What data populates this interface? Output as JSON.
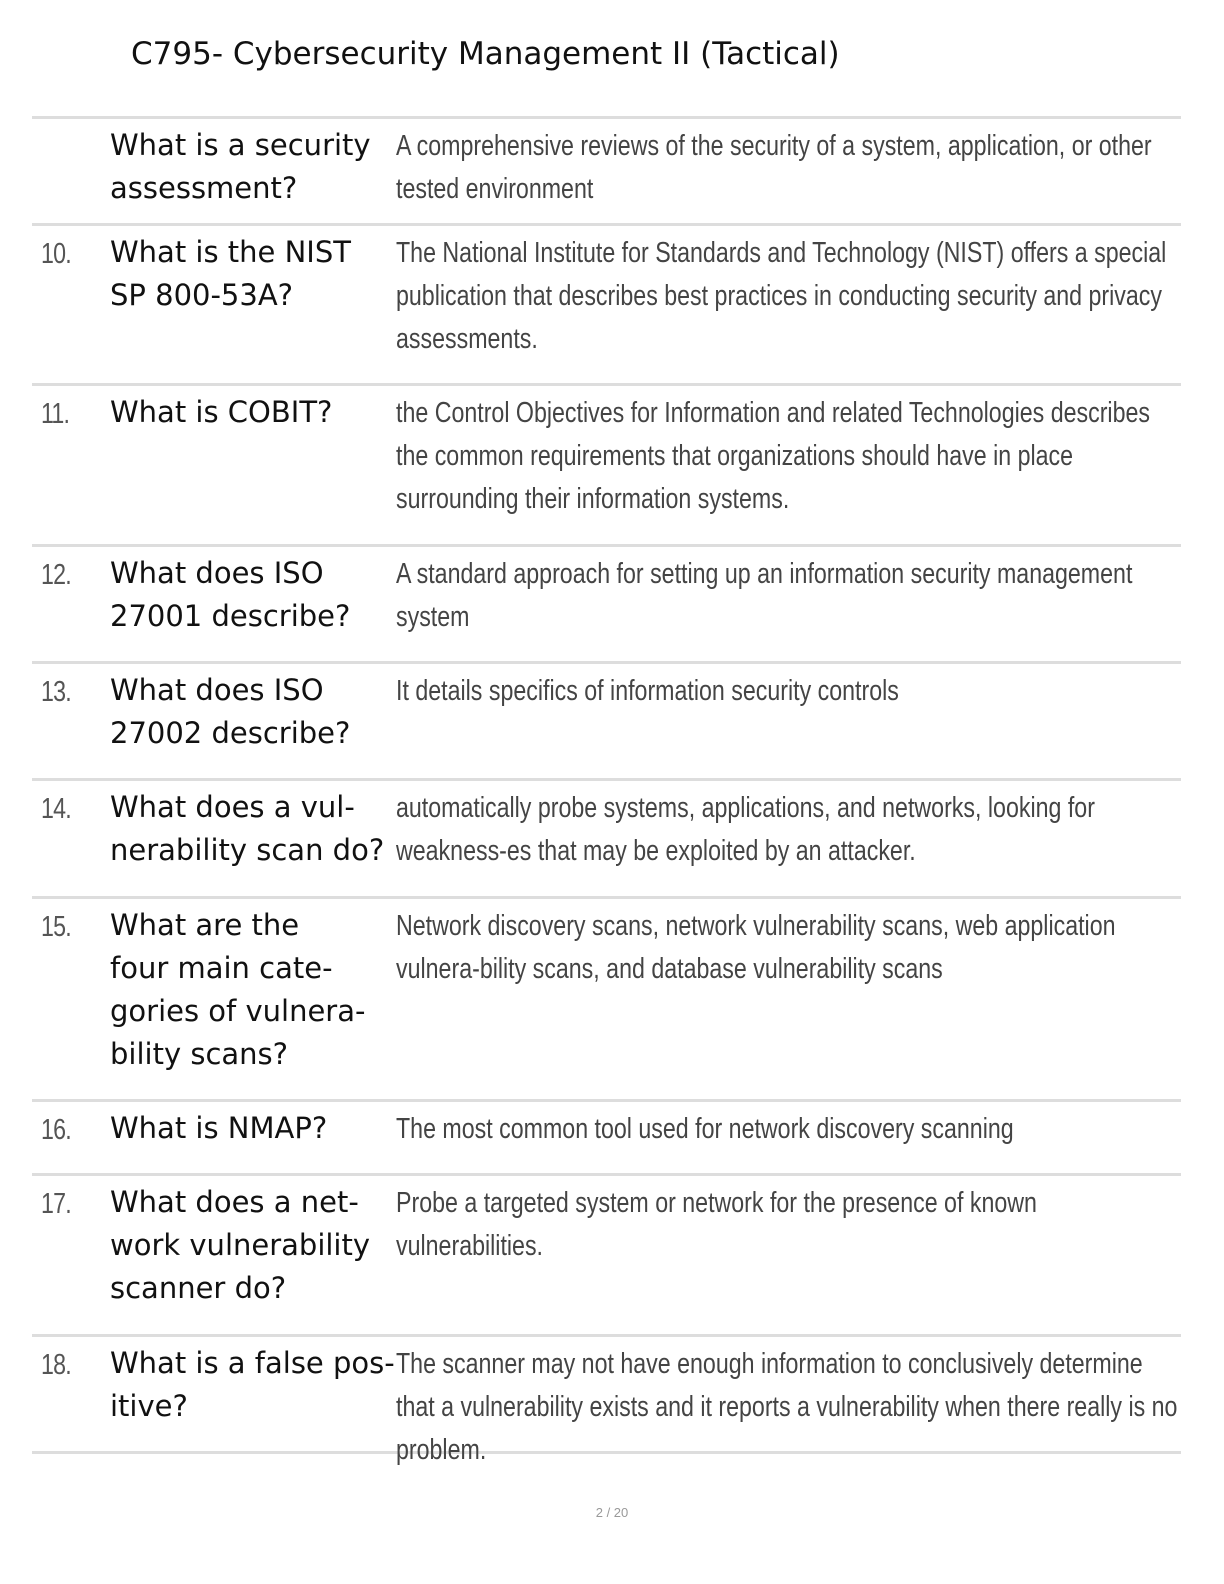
{
  "title": "C795- Cybersecurity Management II (Tactical)",
  "rows": [
    {
      "num": "",
      "q": [
        "What is a security",
        "assessment?"
      ],
      "a": "A comprehensive reviews of the security of a system, application, or other tested environment"
    },
    {
      "num": "10.",
      "q": [
        "What is the NIST",
        "SP 800-53A?"
      ],
      "a": "The National Institute for Standards and Technology (NIST) offers a special publication that describes best practices in conducting security and privacy assessments."
    },
    {
      "num": "11.",
      "q": [
        "What is COBIT?"
      ],
      "a": "the Control Objectives for Information and related Technologies describes the common requirements that organizations should have in place surrounding their information systems."
    },
    {
      "num": "12.",
      "q": [
        "What does ISO",
        "27001 describe?"
      ],
      "a": "A standard approach for setting up an information security management system"
    },
    {
      "num": "13.",
      "q": [
        "What does ISO",
        "27002 describe?"
      ],
      "a": "It details specifics of information security controls"
    },
    {
      "num": "14.",
      "q": [
        "What does a vul-",
        "nerability scan do?"
      ],
      "a": "automatically probe systems, applications, and networks, looking for weakness-es that may be exploited by an attacker."
    },
    {
      "num": "15.",
      "q": [
        "What are the",
        "four main cate-",
        "gories of vulnera-",
        "bility scans?"
      ],
      "a": "Network discovery scans, network vulnerability scans, web application vulnera-bility scans, and database vulnerability scans"
    },
    {
      "num": "16.",
      "q": [
        "What is NMAP?"
      ],
      "a": "The most common tool used for network discovery scanning"
    },
    {
      "num": "17.",
      "q": [
        "What does a net-",
        "work vulnerability",
        "scanner do?"
      ],
      "a": "Probe a targeted system or network for the presence of known vulnerabilities."
    },
    {
      "num": "18.",
      "q": [
        "What is a false pos-",
        "itive?"
      ],
      "a": "The scanner may not have enough information to conclusively determine that a vulnerability exists and it reports a vulnerability when there really is no problem."
    }
  ],
  "footer": "2 / 20"
}
